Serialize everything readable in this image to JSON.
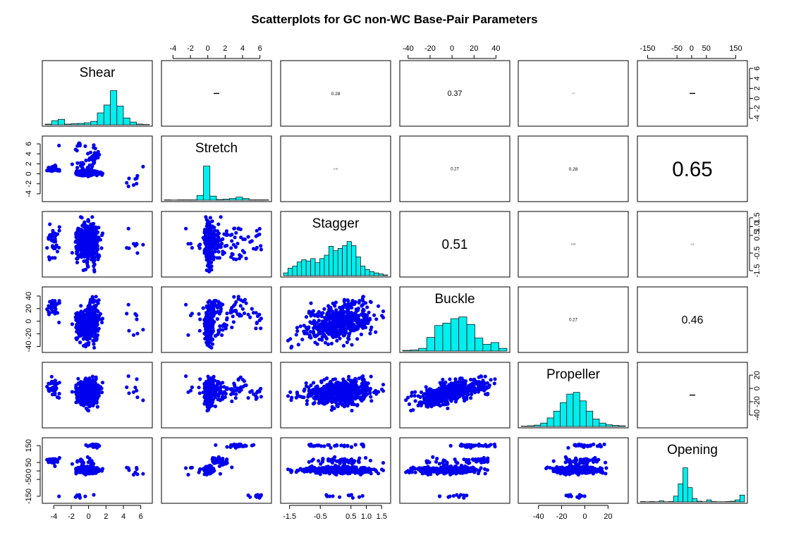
{
  "chart_data": {
    "type": "scatter",
    "subtype": "scatterplot-matrix",
    "title": "Scatterplots for GC non-WC Base-Pair Parameters",
    "point_color": "#0000ee",
    "hist_color": "#00eeee",
    "variables": [
      "Shear",
      "Stretch",
      "Stagger",
      "Buckle",
      "Propeller",
      "Opening"
    ],
    "axis_ranges": {
      "Shear": [
        -5,
        7
      ],
      "Stretch": [
        -5,
        7
      ],
      "Stagger": [
        -1.7,
        1.7
      ],
      "Buckle": [
        -45,
        50
      ],
      "Propeller": [
        -55,
        35
      ],
      "Opening": [
        -175,
        180
      ]
    },
    "tick_labels": {
      "Shear": [
        "-4",
        "-2",
        "0",
        "2",
        "4",
        "6"
      ],
      "Stretch": [
        "-4",
        "-2",
        "0",
        "2",
        "4",
        "6"
      ],
      "Stagger": [
        "-1.5",
        "-0.5",
        "0.5",
        "1.0",
        "1.5"
      ],
      "Buckle": [
        "-40",
        "-20",
        "0",
        "20",
        "40"
      ],
      "Propeller": [
        "-40",
        "-20",
        "0",
        "20"
      ],
      "Opening": [
        "-150",
        "-50",
        "0",
        "50",
        "150"
      ]
    },
    "tick_values": {
      "Shear": [
        -4,
        -2,
        0,
        2,
        4,
        6
      ],
      "Stretch": [
        -4,
        -2,
        0,
        2,
        4,
        6
      ],
      "Stagger": [
        -1.5,
        -0.5,
        0.5,
        1.0,
        1.5
      ],
      "Buckle": [
        -40,
        -20,
        0,
        20,
        40
      ],
      "Propeller": [
        -40,
        -20,
        0,
        20
      ],
      "Opening": [
        -150,
        -50,
        0,
        50,
        150
      ]
    },
    "histograms": {
      "Shear": [
        0.02,
        0.12,
        0.16,
        0.02,
        0.03,
        0.04,
        0.06,
        0.1,
        0.35,
        0.58,
        1.0,
        0.55,
        0.2,
        0.08,
        0.02,
        0.01
      ],
      "Stretch": [
        0.01,
        0.005,
        0.01,
        0.01,
        0.01,
        0.14,
        1.0,
        0.12,
        0.02,
        0.03,
        0.05,
        0.09,
        0.05,
        0.01,
        0.01,
        0.01
      ],
      "Stagger": [
        0.08,
        0.22,
        0.28,
        0.4,
        0.47,
        0.43,
        0.5,
        0.38,
        0.5,
        0.6,
        0.86,
        0.73,
        0.8,
        0.88,
        1.0,
        0.88,
        0.55,
        0.28,
        0.18,
        0.12,
        0.08,
        0.05,
        0.02
      ],
      "Buckle": [
        0.02,
        0.03,
        0.08,
        0.4,
        0.75,
        0.82,
        0.95,
        1.0,
        0.78,
        0.38,
        0.2,
        0.25,
        0.08
      ],
      "Propeller": [
        0.01,
        0.02,
        0.04,
        0.1,
        0.25,
        0.45,
        0.7,
        0.95,
        1.0,
        0.75,
        0.45,
        0.22,
        0.1,
        0.05,
        0.03,
        0.02
      ],
      "Opening": [
        0.01,
        0.005,
        0.01,
        0.005,
        0.03,
        0.005,
        0.01,
        0.17,
        0.53,
        1.0,
        0.42,
        0.1,
        0.02,
        0.005,
        0.06,
        0.01,
        0.005,
        0.005,
        0.01,
        0.02,
        0.06,
        0.2
      ]
    },
    "correlations": [
      {
        "row": "Shear",
        "col": "Stagger",
        "value": "0.28"
      },
      {
        "row": "Shear",
        "col": "Buckle",
        "value": "0.37"
      },
      {
        "row": "Shear",
        "col": "Propeller",
        "value": "0.13"
      },
      {
        "row": "Stretch",
        "col": "Stagger",
        "value": "0.18"
      },
      {
        "row": "Stretch",
        "col": "Buckle",
        "value": "0.27"
      },
      {
        "row": "Stretch",
        "col": "Propeller",
        "value": "0.28"
      },
      {
        "row": "Stretch",
        "col": "Opening",
        "value": "0.65"
      },
      {
        "row": "Stagger",
        "col": "Buckle",
        "value": "0.51"
      },
      {
        "row": "Stagger",
        "col": "Propeller",
        "value": "0.19"
      },
      {
        "row": "Stagger",
        "col": "Opening",
        "value": "0.16"
      },
      {
        "row": "Buckle",
        "col": "Propeller",
        "value": "0.27"
      },
      {
        "row": "Buckle",
        "col": "Opening",
        "value": "0.46"
      }
    ],
    "grid": false,
    "legend": "none"
  }
}
